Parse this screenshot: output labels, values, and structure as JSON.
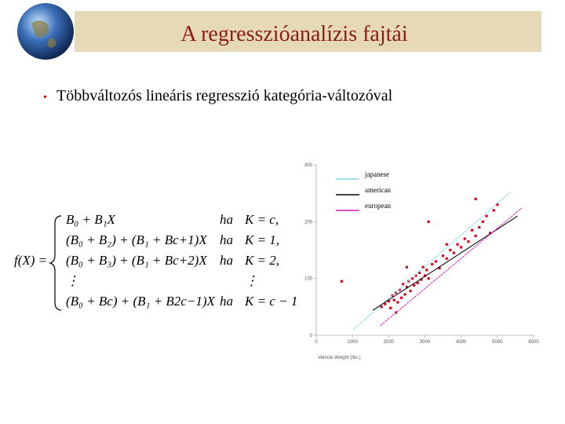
{
  "header": {
    "title": "A regresszióanalízis fajtái"
  },
  "bullet": "Többváltozós lineáris regresszió kategória-változóval",
  "formula": {
    "lhs": "f(X) =",
    "rows": [
      {
        "expr": "B₀ + B₁X",
        "cond": "ha",
        "case": "K = c,"
      },
      {
        "expr": "(B₀ + B₂) + (B₁ + Bc+1)X",
        "cond": "ha",
        "case": "K = 1,"
      },
      {
        "expr": "(B₀ + B₃) + (B₁ + Bc+2)X",
        "cond": "ha",
        "case": "K = 2,"
      },
      {
        "expr": "⋮",
        "cond": "",
        "case": "⋮"
      },
      {
        "expr": "(B₀ + Bc) + (B₁ + B2c−1)X",
        "cond": "ha",
        "case": "K = c − 1"
      }
    ]
  },
  "chart_data": {
    "type": "scatter",
    "x_label": "Vehicle Weight (lbs.)",
    "xlim": [
      0,
      6000
    ],
    "xticks": [
      0,
      1000,
      2000,
      3000,
      4000,
      5000,
      6000
    ],
    "ylim": [
      0,
      300
    ],
    "yticks": [
      0,
      100,
      200,
      300
    ],
    "points": {
      "color": "#e0001a",
      "x": [
        1800,
        1900,
        2000,
        2050,
        2100,
        2150,
        2200,
        2250,
        2300,
        2350,
        2400,
        2450,
        2500,
        2550,
        2600,
        2650,
        2700,
        2750,
        2800,
        2850,
        2900,
        2950,
        3000,
        3050,
        3100,
        3200,
        3300,
        3400,
        3500,
        3600,
        3700,
        3800,
        3900,
        4000,
        4100,
        4200,
        4300,
        4400,
        4500,
        4600,
        4700,
        4800,
        4900,
        5000,
        700,
        3100,
        4400,
        3600,
        2200,
        2500
      ],
      "y": [
        50,
        55,
        60,
        48,
        70,
        62,
        75,
        58,
        80,
        66,
        90,
        72,
        85,
        95,
        78,
        100,
        88,
        105,
        92,
        110,
        98,
        120,
        105,
        115,
        100,
        125,
        130,
        118,
        140,
        135,
        150,
        145,
        160,
        155,
        170,
        165,
        185,
        175,
        190,
        200,
        210,
        180,
        220,
        230,
        95,
        200,
        240,
        160,
        40,
        120
      ]
    },
    "series": [
      {
        "name": "japanese",
        "color": "#7fd8e8",
        "x": [
          1020,
          5350
        ],
        "values": [
          10,
          252
        ]
      },
      {
        "name": "american",
        "color": "#000000",
        "x": [
          1560,
          5560
        ],
        "values": [
          44,
          210
        ]
      },
      {
        "name": "european",
        "color": "#d020c0",
        "x": [
          1770,
          5670
        ],
        "values": [
          17,
          224
        ]
      }
    ]
  }
}
